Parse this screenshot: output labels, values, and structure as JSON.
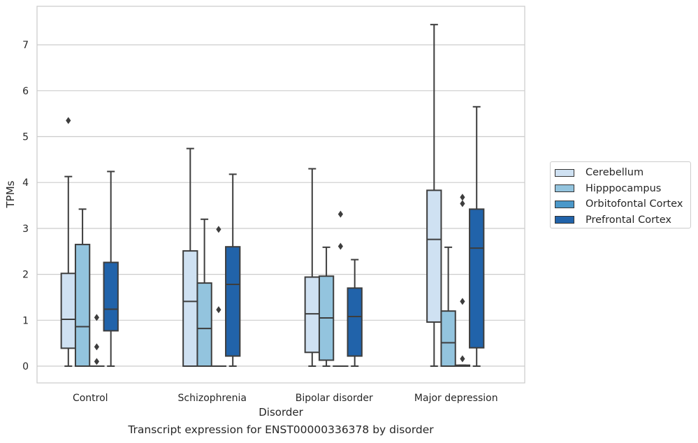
{
  "caption": "Transcript expression for ENST00000336378 by disorder",
  "chart_data": {
    "type": "box",
    "xlabel": "Disorder",
    "ylabel": "TPMs",
    "categories": [
      "Control",
      "Schizophrenia",
      "Bipolar disorder",
      "Major depression"
    ],
    "ylim": [
      -0.37,
      7.82
    ],
    "yticks": [
      0,
      1,
      2,
      3,
      4,
      5,
      6,
      7
    ],
    "grid": true,
    "legend_position": "right, outside",
    "colors": [
      "#cfe1f2",
      "#93c4de",
      "#4b98c9",
      "#2163aa"
    ],
    "series": [
      {
        "name": "Cerebellum",
        "boxes": [
          {
            "min": 0,
            "q1": 0.39,
            "median": 1.02,
            "q3": 2.02,
            "max": 4.13,
            "outliers": [
              5.35
            ]
          },
          {
            "min": 0,
            "q1": 0,
            "median": 1.41,
            "q3": 2.51,
            "max": 4.74,
            "outliers": []
          },
          {
            "min": 0,
            "q1": 0.3,
            "median": 1.14,
            "q3": 1.94,
            "max": 4.3,
            "outliers": []
          },
          {
            "min": 0,
            "q1": 0.96,
            "median": 2.76,
            "q3": 3.83,
            "max": 7.44,
            "outliers": []
          }
        ]
      },
      {
        "name": "Hipppocampus",
        "boxes": [
          {
            "min": 0,
            "q1": 0,
            "median": 0.86,
            "q3": 2.65,
            "max": 3.42,
            "outliers": []
          },
          {
            "min": 0,
            "q1": 0,
            "median": 0.82,
            "q3": 1.81,
            "max": 3.2,
            "outliers": []
          },
          {
            "min": 0,
            "q1": 0.13,
            "median": 1.05,
            "q3": 1.96,
            "max": 2.59,
            "outliers": []
          },
          {
            "min": 0,
            "q1": 0,
            "median": 0.51,
            "q3": 1.2,
            "max": 2.59,
            "outliers": []
          }
        ]
      },
      {
        "name": "Orbitofontal Cortex",
        "boxes": [
          {
            "min": 0,
            "q1": 0,
            "median": 0,
            "q3": 0,
            "max": 0,
            "outliers": [
              0.1,
              0.42,
              1.06
            ]
          },
          {
            "min": 0,
            "q1": 0,
            "median": 0,
            "q3": 0,
            "max": 0,
            "outliers": [
              1.23,
              2.98
            ]
          },
          {
            "min": 0,
            "q1": 0,
            "median": 0,
            "q3": 0,
            "max": 0,
            "outliers": [
              2.61,
              3.31
            ]
          },
          {
            "min": 0,
            "q1": 0,
            "median": 0,
            "q3": 0.02,
            "max": 0.02,
            "outliers": [
              0.16,
              1.41,
              3.54,
              3.68
            ]
          }
        ]
      },
      {
        "name": "Prefrontal Cortex",
        "boxes": [
          {
            "min": 0,
            "q1": 0.77,
            "median": 1.24,
            "q3": 2.26,
            "max": 4.24,
            "outliers": []
          },
          {
            "min": 0,
            "q1": 0.22,
            "median": 1.78,
            "q3": 2.6,
            "max": 4.18,
            "outliers": []
          },
          {
            "min": 0,
            "q1": 0.22,
            "median": 1.08,
            "q3": 1.7,
            "max": 2.32,
            "outliers": []
          },
          {
            "min": 0,
            "q1": 0.4,
            "median": 2.57,
            "q3": 3.42,
            "max": 5.65,
            "outliers": []
          }
        ]
      }
    ]
  }
}
